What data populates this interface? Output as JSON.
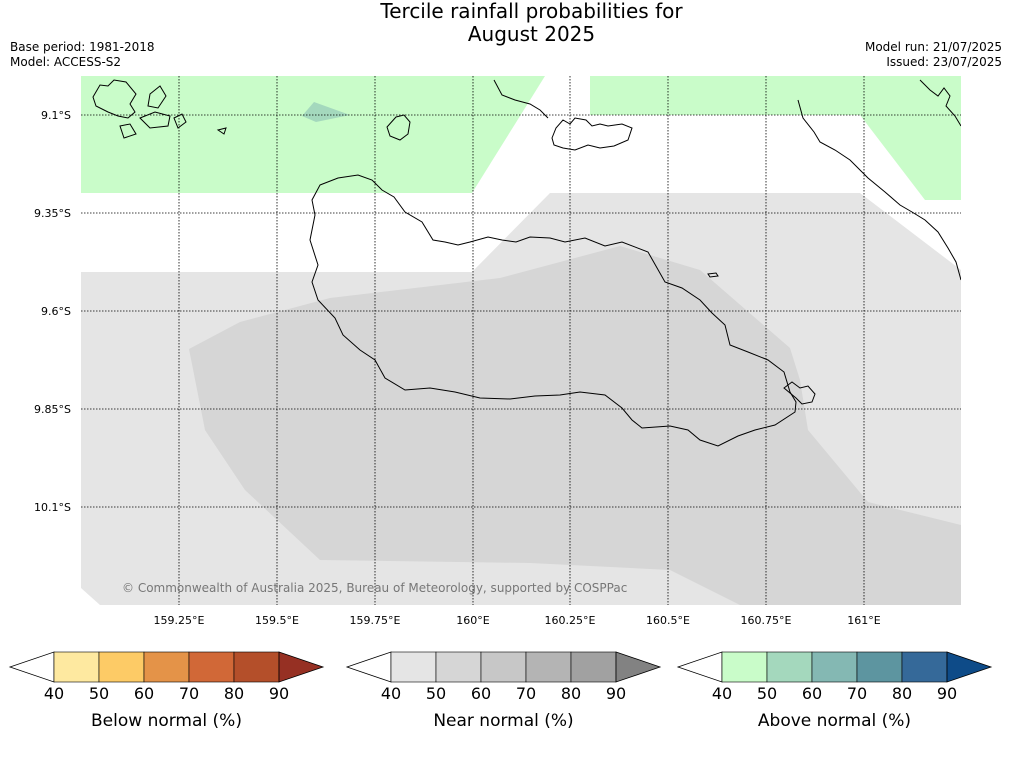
{
  "title": {
    "line1": "Tercile rainfall probabilities for",
    "line2": "August 2025"
  },
  "meta": {
    "base_period": "Base period: 1981-2018",
    "model": "Model: ACCESS-S2",
    "model_run": "Model run: 21/07/2025",
    "issued": "Issued: 23/07/2025"
  },
  "map": {
    "lat_labels": [
      "9.1°S",
      "9.35°S",
      "9.6°S",
      "9.85°S",
      "10.1°S"
    ],
    "lon_labels": [
      "159.25°E",
      "159.5°E",
      "159.75°E",
      "160°E",
      "160.25°E",
      "160.5°E",
      "160.75°E",
      "161°E"
    ],
    "copyright": "© Commonwealth of Australia 2025, Bureau of Meteorology, supported by COSPPac",
    "region_colors": {
      "above_50": "#c9fcc9",
      "near_40": "#e5e5e5",
      "near_50": "#d6d6d6",
      "above_60_patch": "#a4d8bd"
    }
  },
  "colorbars": [
    {
      "label": "Below normal (%)",
      "ticks": [
        "40",
        "50",
        "60",
        "70",
        "80",
        "90"
      ],
      "colors": [
        "#ffffff",
        "#fee9a0",
        "#fdcb66",
        "#e49348",
        "#d16837",
        "#b44f2a",
        "#963023"
      ]
    },
    {
      "label": "Near normal (%)",
      "ticks": [
        "40",
        "50",
        "60",
        "70",
        "80",
        "90"
      ],
      "colors": [
        "#ffffff",
        "#e5e5e5",
        "#d6d6d6",
        "#c7c7c7",
        "#b4b4b4",
        "#a1a1a1",
        "#828282"
      ]
    },
    {
      "label": "Above normal (%)",
      "ticks": [
        "40",
        "50",
        "60",
        "70",
        "80",
        "90"
      ],
      "colors": [
        "#ffffff",
        "#c9fcc9",
        "#a4d8bd",
        "#84b8b3",
        "#5d95a0",
        "#356999",
        "#0e4b88"
      ]
    }
  ]
}
